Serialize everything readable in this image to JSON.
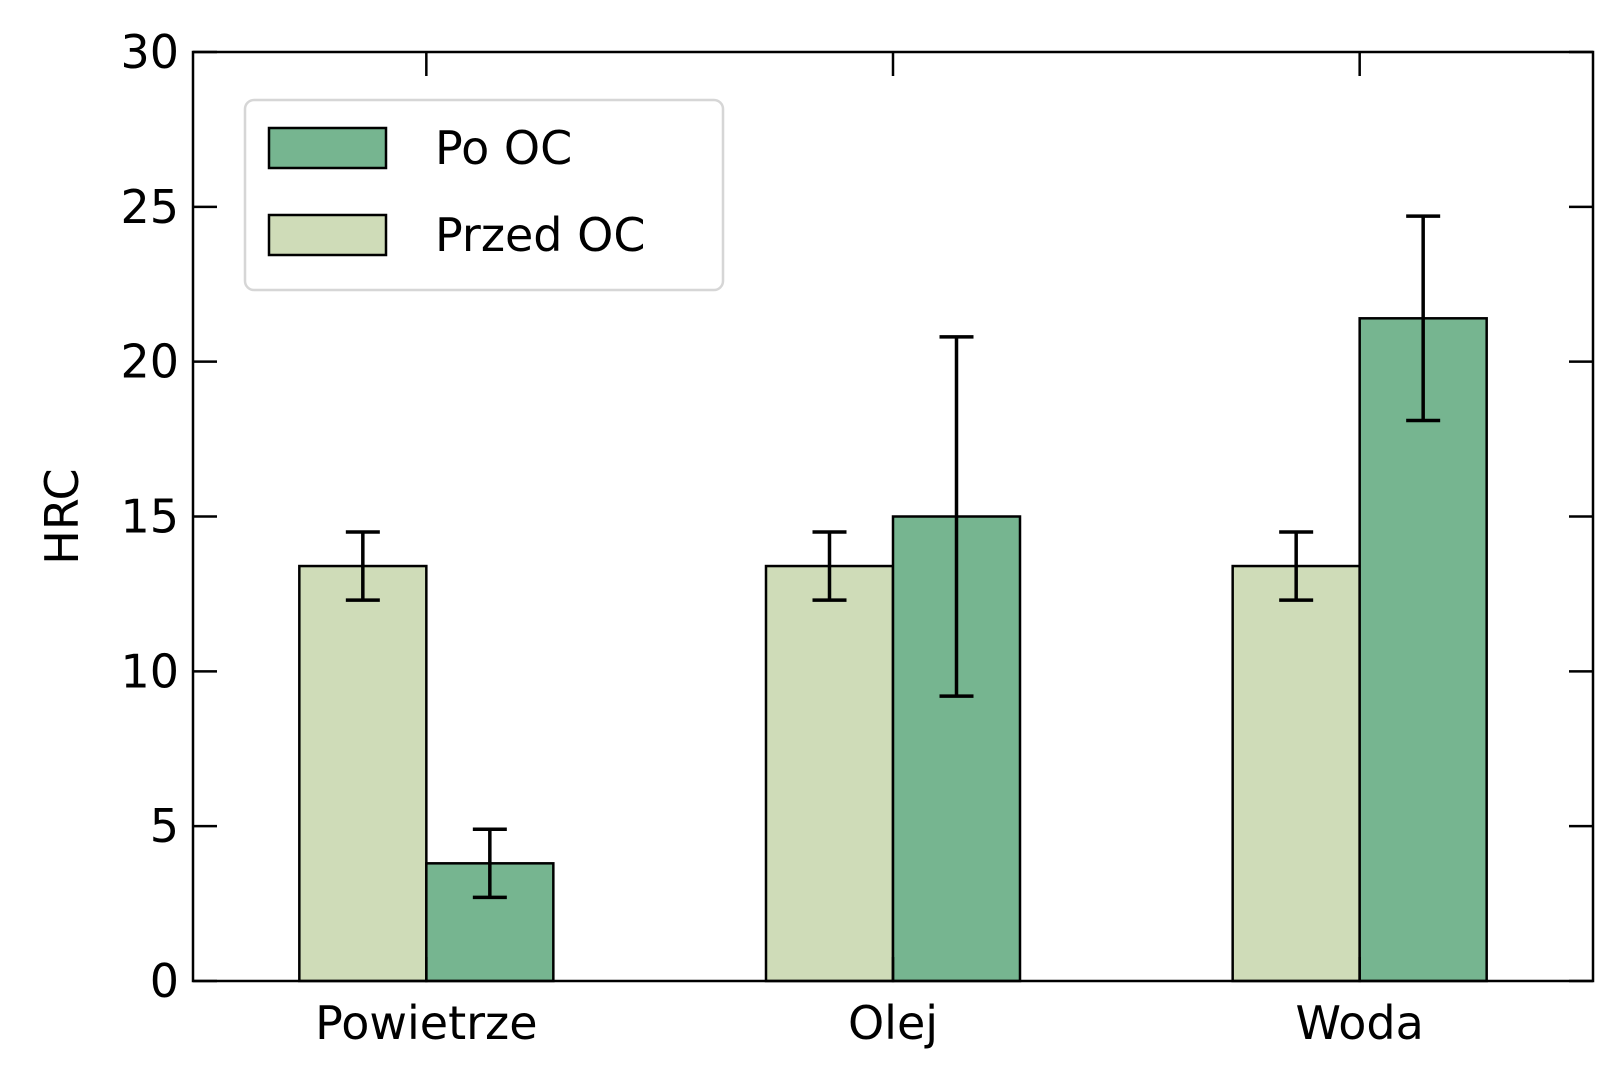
{
  "chart_data": {
    "type": "bar",
    "categories": [
      "Powietrze",
      "Olej",
      "Woda"
    ],
    "series": [
      {
        "name": "Przed OC",
        "values": [
          13.4,
          13.4,
          13.4
        ],
        "errors": [
          1.1,
          1.1,
          1.1
        ],
        "color": "#cfdcb8"
      },
      {
        "name": "Po OC",
        "values": [
          3.8,
          15.0,
          21.4
        ],
        "errors": [
          1.1,
          5.8,
          3.3
        ],
        "color": "#76b590"
      }
    ],
    "legend_order": [
      1,
      0
    ],
    "legend_position": "top-left",
    "xlabel": "",
    "ylabel": "HRC",
    "ylim": [
      0,
      30
    ],
    "yticks": [
      0,
      5,
      10,
      15,
      20,
      25,
      30
    ],
    "grid": false
  }
}
